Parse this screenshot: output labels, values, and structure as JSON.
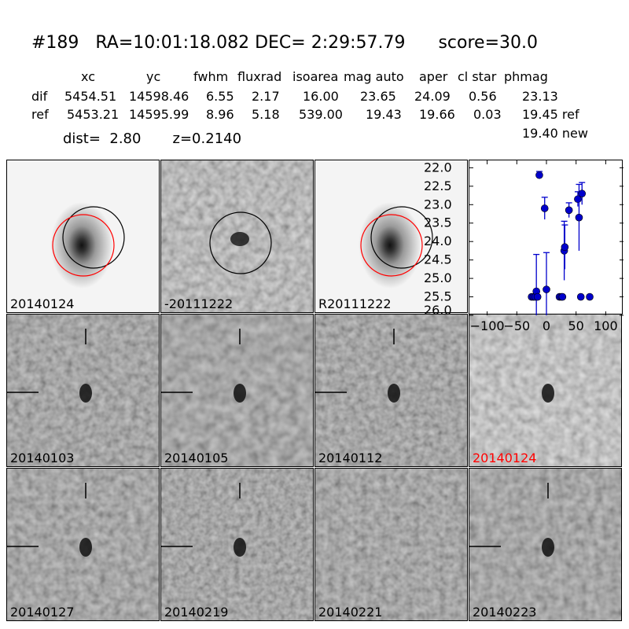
{
  "header": {
    "title": "#189   RA=10:01:18.082 DEC= 2:29:57.79      score=30.0"
  },
  "table": {
    "columns": [
      "xc",
      "yc",
      "fwhm",
      "fluxrad",
      "isoarea",
      "mag auto",
      "aper",
      "cl star",
      "phmag"
    ],
    "rows": [
      {
        "label": "dif",
        "values": [
          "5454.51",
          "14598.46",
          "6.55",
          "2.17",
          "16.00",
          "23.65",
          "24.09",
          "0.56",
          "23.13"
        ]
      },
      {
        "label": "ref",
        "values": [
          "5453.21",
          "14595.99",
          "8.96",
          "5.18",
          "539.00",
          "19.43",
          "19.66",
          "0.03",
          "19.45 ref"
        ]
      }
    ],
    "extra_phmag": "19.40 new"
  },
  "dist_line": {
    "dist": "dist=  2.80",
    "z": "z=0.2140"
  },
  "panels": [
    {
      "label": "20140124",
      "kind": "galaxy-circles"
    },
    {
      "label": "-20111222",
      "kind": "diff-circle"
    },
    {
      "label": "R20111222",
      "kind": "galaxy-circles"
    },
    {
      "label": "20140103",
      "kind": "noise-crosshair"
    },
    {
      "label": "20140105",
      "kind": "noise-crosshair"
    },
    {
      "label": "20140112",
      "kind": "noise-crosshair"
    },
    {
      "label": "20140124",
      "kind": "noise-bright",
      "label_color": "#ff0000"
    },
    {
      "label": "20140127",
      "kind": "noise-crosshair"
    },
    {
      "label": "20140219",
      "kind": "noise-crosshair"
    },
    {
      "label": "20140221",
      "kind": "noise-plain"
    },
    {
      "label": "20140223",
      "kind": "noise-crosshair"
    }
  ],
  "chart_data": {
    "type": "scatter",
    "title": "",
    "xlabel": "",
    "ylabel": "",
    "xlim": [
      -130,
      130
    ],
    "ylim": [
      26.0,
      21.8
    ],
    "y_inverted": true,
    "xticks": [
      -100,
      -50,
      0,
      50,
      100
    ],
    "xtick_labels": [
      "−100",
      "−50",
      "0",
      "50",
      "100"
    ],
    "yticks": [
      22.0,
      22.5,
      23.0,
      23.5,
      24.0,
      24.5,
      25.0,
      25.5,
      26.0
    ],
    "ytick_labels": [
      "22.0",
      "22.5",
      "23.0",
      "23.5",
      "24.0",
      "24.5",
      "25.0",
      "25.5",
      "26.0"
    ],
    "marker_color": "#0000cc",
    "points": [
      {
        "x": -25,
        "y": 25.5,
        "err": 0
      },
      {
        "x": -22,
        "y": 25.5,
        "err": 0
      },
      {
        "x": -19,
        "y": 25.5,
        "err": 0
      },
      {
        "x": -17,
        "y": 25.35,
        "err": 1.0
      },
      {
        "x": -15,
        "y": 25.5,
        "err": 0
      },
      {
        "x": -12,
        "y": 22.2,
        "err": 0.1
      },
      {
        "x": -3,
        "y": 23.1,
        "err": 0.3
      },
      {
        "x": 0,
        "y": 25.3,
        "err": 1.0
      },
      {
        "x": 22,
        "y": 25.5,
        "err": 0
      },
      {
        "x": 25,
        "y": 25.5,
        "err": 0
      },
      {
        "x": 27,
        "y": 25.5,
        "err": 0
      },
      {
        "x": 30,
        "y": 24.25,
        "err": 0.8
      },
      {
        "x": 31,
        "y": 24.15,
        "err": 0.6
      },
      {
        "x": 38,
        "y": 23.15,
        "err": 0.2
      },
      {
        "x": 53,
        "y": 22.85,
        "err": 0.2
      },
      {
        "x": 55,
        "y": 23.35,
        "err": 0.9
      },
      {
        "x": 58,
        "y": 25.5,
        "err": 0
      },
      {
        "x": 60,
        "y": 22.7,
        "err": 0.3
      },
      {
        "x": 73,
        "y": 25.5,
        "err": 0
      }
    ]
  }
}
